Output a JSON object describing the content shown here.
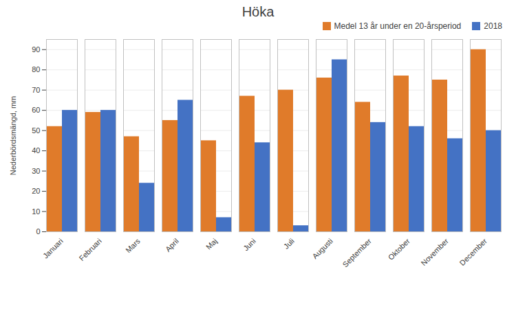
{
  "chart_data": {
    "type": "bar",
    "title": "Höka",
    "y_label": "Nederbördsmängd, mm",
    "categories": [
      "Januari",
      "Februari",
      "Mars",
      "April",
      "Maj",
      "Juni",
      "Juli",
      "Augusti",
      "September",
      "Oktober",
      "November",
      "December"
    ],
    "series": [
      {
        "name": "Medel 13 år under en 20-årsperiod",
        "color": "#E07B2A",
        "values": [
          52,
          59,
          47,
          55,
          45,
          67,
          70,
          76,
          64,
          77,
          75,
          90
        ]
      },
      {
        "name": "2018",
        "color": "#4472C4",
        "values": [
          60,
          60,
          24,
          65,
          7,
          44,
          3,
          85,
          54,
          52,
          46,
          50
        ]
      }
    ],
    "ylim": [
      0,
      95
    ],
    "yticks": [
      0,
      10,
      20,
      30,
      40,
      50,
      60,
      70,
      80,
      90
    ],
    "grid": true,
    "legend": "upper right"
  }
}
